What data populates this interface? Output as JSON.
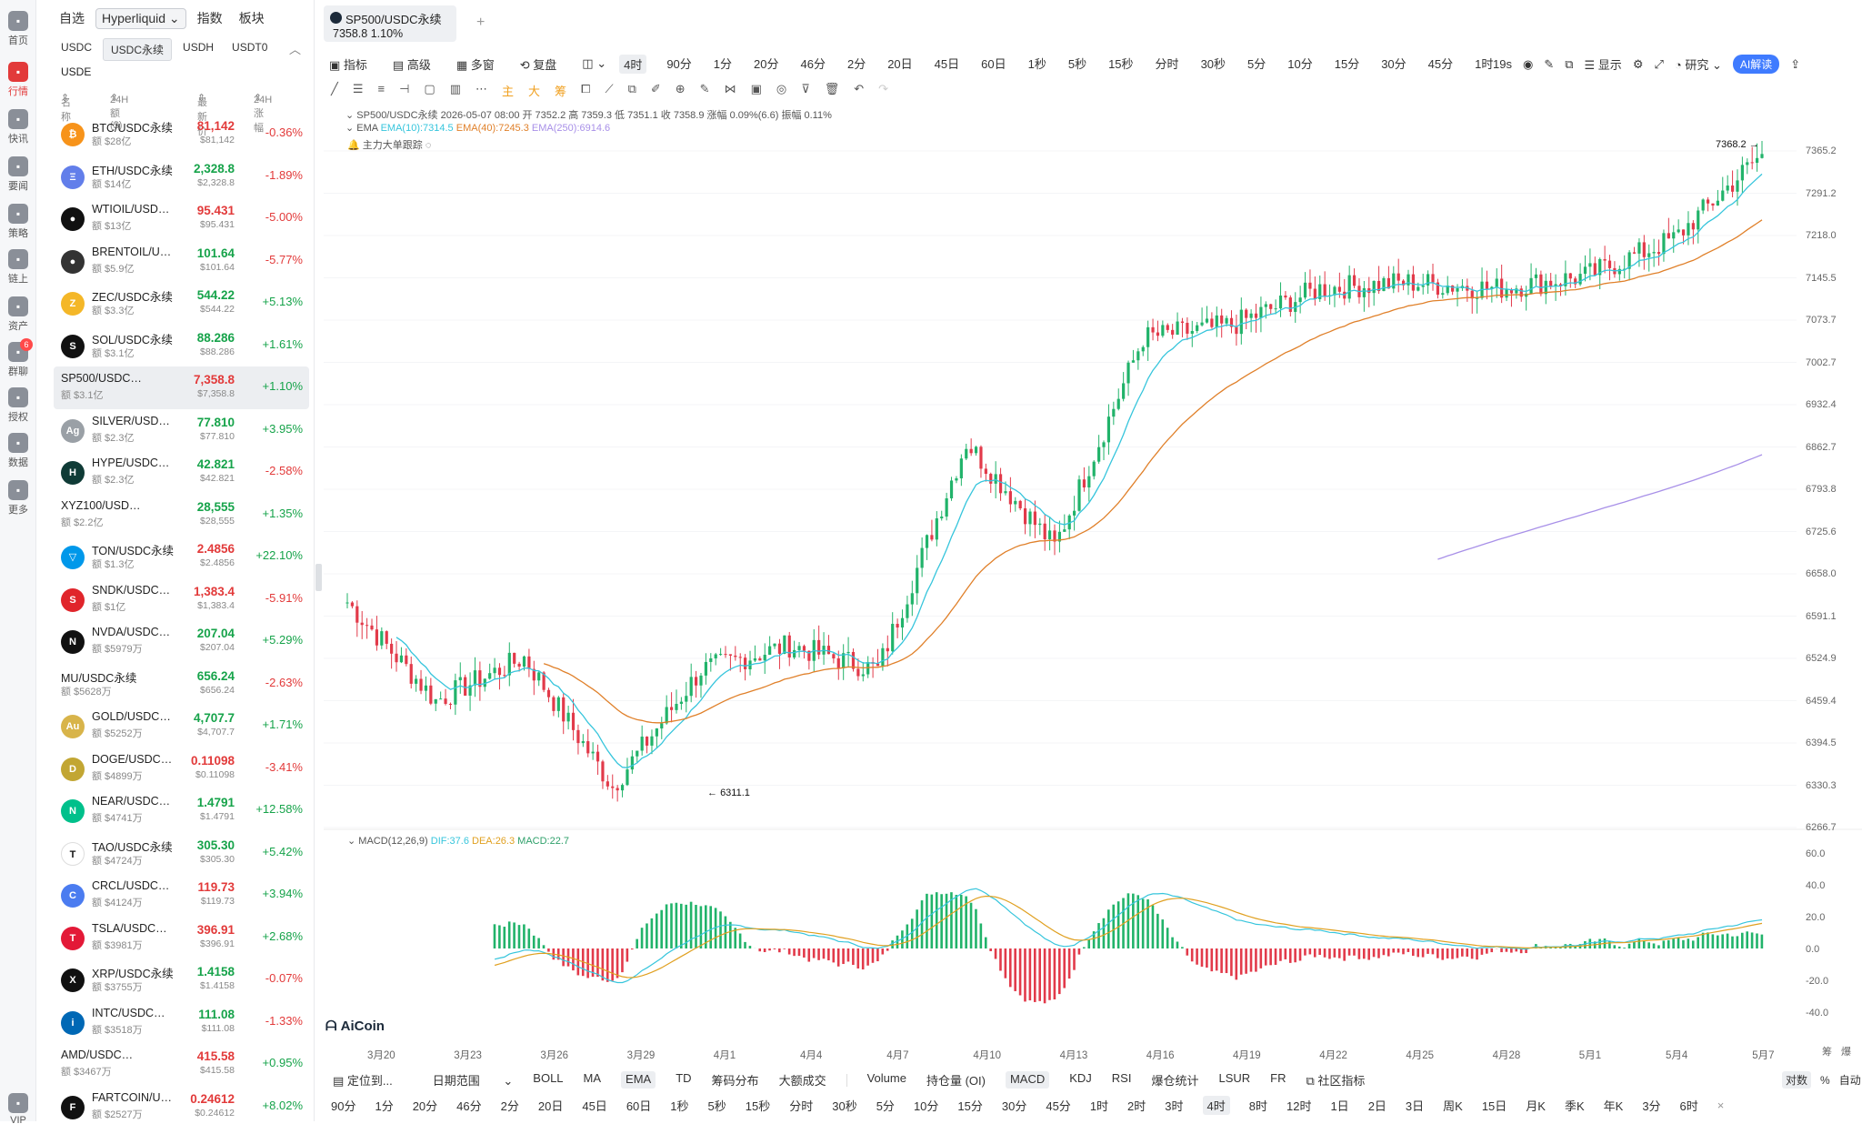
{
  "nav": {
    "items": [
      {
        "label": "首页",
        "icon": "home-icon"
      },
      {
        "label": "行情",
        "icon": "chart-icon",
        "active": true
      },
      {
        "label": "快讯",
        "icon": "flash-icon"
      },
      {
        "label": "要闻",
        "icon": "news-icon"
      },
      {
        "label": "策略",
        "icon": "strategy-icon"
      },
      {
        "label": "链上",
        "icon": "chain-icon"
      },
      {
        "label": "资产",
        "icon": "wallet-icon"
      },
      {
        "label": "群聊",
        "icon": "chat-icon",
        "badge": "6"
      },
      {
        "label": "授权",
        "icon": "auth-icon"
      },
      {
        "label": "数据",
        "icon": "data-icon"
      },
      {
        "label": "更多",
        "icon": "more-icon"
      },
      {
        "label": "VIP",
        "icon": "vip-icon"
      }
    ]
  },
  "market": {
    "tabs": [
      "自选",
      "Hyperliquid",
      "指数",
      "板块"
    ],
    "subtabs": [
      "USDC",
      "USDC永续",
      "USDH",
      "USDT0"
    ],
    "subtab2": "USDE",
    "headers": {
      "name": "名称",
      "volume": "24H额($)",
      "price": "最新价",
      "change": "24H涨幅"
    },
    "rows": [
      {
        "name": "BTC/USDC永续",
        "vol": "额 $28亿",
        "price": "81,142",
        "usd": "$81,142",
        "chg": "-0.36%",
        "dir": "dn",
        "coin": "₿",
        "color": "#f7931a"
      },
      {
        "name": "ETH/USDC永续",
        "vol": "额 $14亿",
        "price": "2,328.8",
        "usd": "$2,328.8",
        "chg": "-1.89%",
        "dir": "up",
        "coin": "Ξ",
        "color": "#627eea"
      },
      {
        "name": "WTIOIL/USD…",
        "vol": "额 $13亿",
        "price": "95.431",
        "usd": "$95.431",
        "chg": "-5.00%",
        "dir": "dn",
        "coin": "●",
        "color": "#111"
      },
      {
        "name": "BRENTOIL/U…",
        "vol": "额 $5.9亿",
        "price": "101.64",
        "usd": "$101.64",
        "chg": "-5.77%",
        "dir": "up",
        "coin": "●",
        "color": "#333"
      },
      {
        "name": "ZEC/USDC永续",
        "vol": "额 $3.3亿",
        "price": "544.22",
        "usd": "$544.22",
        "chg": "+5.13%",
        "dir": "up",
        "coin": "Z",
        "color": "#f4b728"
      },
      {
        "name": "SOL/USDC永续",
        "vol": "额 $3.1亿",
        "price": "88.286",
        "usd": "$88.286",
        "chg": "+1.61%",
        "dir": "up",
        "coin": "S",
        "color": "#111"
      },
      {
        "name": "SP500/USDC…",
        "vol": "额 $3.1亿",
        "price": "7,358.8",
        "usd": "$7,358.8",
        "chg": "+1.10%",
        "dir": "dn",
        "coin": "",
        "color": "transparent",
        "selected": true
      },
      {
        "name": "SILVER/USD…",
        "vol": "额 $2.3亿",
        "price": "77.810",
        "usd": "$77.810",
        "chg": "+3.95%",
        "dir": "up",
        "coin": "Ag",
        "color": "#9aa0a6"
      },
      {
        "name": "HYPE/USDC…",
        "vol": "额 $2.3亿",
        "price": "42.821",
        "usd": "$42.821",
        "chg": "-2.58%",
        "dir": "up",
        "coin": "H",
        "color": "#0f3b36"
      },
      {
        "name": "XYZ100/USD…",
        "vol": "额 $2.2亿",
        "price": "28,555",
        "usd": "$28,555",
        "chg": "+1.35%",
        "dir": "up",
        "coin": "",
        "color": "transparent"
      },
      {
        "name": "TON/USDC永续",
        "vol": "额 $1.3亿",
        "price": "2.4856",
        "usd": "$2.4856",
        "chg": "+22.10%",
        "dir": "dn",
        "coin": "▽",
        "color": "#0098ea"
      },
      {
        "name": "SNDK/USDC…",
        "vol": "额 $1亿",
        "price": "1,383.4",
        "usd": "$1,383.4",
        "chg": "-5.91%",
        "dir": "dn",
        "coin": "S",
        "color": "#e0252b"
      },
      {
        "name": "NVDA/USDC…",
        "vol": "额 $5979万",
        "price": "207.04",
        "usd": "$207.04",
        "chg": "+5.29%",
        "dir": "up",
        "coin": "N",
        "color": "#111"
      },
      {
        "name": "MU/USDC永续",
        "vol": "额 $5628万",
        "price": "656.24",
        "usd": "$656.24",
        "chg": "-2.63%",
        "dir": "up",
        "coin": "",
        "color": "transparent"
      },
      {
        "name": "GOLD/USDC…",
        "vol": "额 $5252万",
        "price": "4,707.7",
        "usd": "$4,707.7",
        "chg": "+1.71%",
        "dir": "up",
        "coin": "Au",
        "color": "#d8b44a"
      },
      {
        "name": "DOGE/USDC…",
        "vol": "额 $4899万",
        "price": "0.11098",
        "usd": "$0.11098",
        "chg": "-3.41%",
        "dir": "dn",
        "coin": "D",
        "color": "#c2a633"
      },
      {
        "name": "NEAR/USDC…",
        "vol": "额 $4741万",
        "price": "1.4791",
        "usd": "$1.4791",
        "chg": "+12.58%",
        "dir": "up",
        "coin": "N",
        "color": "#00c08b"
      },
      {
        "name": "TAO/USDC永续",
        "vol": "额 $4724万",
        "price": "305.30",
        "usd": "$305.30",
        "chg": "+5.42%",
        "dir": "up",
        "coin": "T",
        "color": "#fff"
      },
      {
        "name": "CRCL/USDC…",
        "vol": "额 $4124万",
        "price": "119.73",
        "usd": "$119.73",
        "chg": "+3.94%",
        "dir": "dn",
        "coin": "C",
        "color": "#4b7cf0"
      },
      {
        "name": "TSLA/USDC…",
        "vol": "额 $3981万",
        "price": "396.91",
        "usd": "$396.91",
        "chg": "+2.68%",
        "dir": "dn",
        "coin": "T",
        "color": "#e31937"
      },
      {
        "name": "XRP/USDC永续",
        "vol": "额 $3755万",
        "price": "1.4158",
        "usd": "$1.4158",
        "chg": "-0.07%",
        "dir": "up",
        "coin": "X",
        "color": "#111"
      },
      {
        "name": "INTC/USDC…",
        "vol": "额 $3518万",
        "price": "111.08",
        "usd": "$111.08",
        "chg": "-1.33%",
        "dir": "up",
        "coin": "i",
        "color": "#0068b5"
      },
      {
        "name": "AMD/USDC…",
        "vol": "额 $3467万",
        "price": "415.58",
        "usd": "$415.58",
        "chg": "+0.95%",
        "dir": "dn",
        "coin": "",
        "color": "transparent"
      },
      {
        "name": "FARTCOIN/U…",
        "vol": "额 $2527万",
        "price": "0.24612",
        "usd": "$0.24612",
        "chg": "+8.02%",
        "dir": "dn",
        "coin": "F",
        "color": "#111"
      }
    ]
  },
  "symbol": {
    "name": "SP500/USDC永续",
    "price": "7358.8",
    "change": "1.10%"
  },
  "toolbar": {
    "left": [
      "指标",
      "高级",
      "多窗",
      "复盘"
    ],
    "intervals": [
      "4时",
      "90分",
      "1分",
      "20分",
      "46分",
      "2分",
      "20日",
      "45日",
      "60日",
      "1秒",
      "5秒",
      "15秒",
      "分时",
      "30秒",
      "5分",
      "10分",
      "15分",
      "30分",
      "45分",
      "1时"
    ],
    "selected_interval": "4时",
    "right": {
      "countdown": "19s",
      "display": "显示",
      "research": "研究",
      "ai": "AI解读"
    }
  },
  "drawtools": {
    "marks": [
      "主",
      "大",
      "筹"
    ]
  },
  "legend": {
    "ohlc": "SP500/USDC永续 2026-05-07 08:00 开 7352.2 高 7359.3 低 7351.1 收 7358.9 涨幅 0.09%(6.6) 振幅 0.11%",
    "ema_label": "EMA",
    "ema10": "EMA(10):7314.5",
    "ema40": "EMA(40):7245.3",
    "ema250": "EMA(250):6914.6",
    "ema10_color": "#36c5dc",
    "ema40_color": "#e0802a",
    "ema250_color": "#a890e8",
    "track": "主力大单跟踪",
    "macd": "MACD(12,26,9)",
    "dif": "DIF:37.6",
    "dea": "DEA:26.3",
    "macdv": "MACD:22.7"
  },
  "price_axis": [
    "7365.2",
    "7291.2",
    "7218.0",
    "7145.5",
    "7073.7",
    "7002.7",
    "6932.4",
    "6862.7",
    "6793.8",
    "6725.6",
    "6658.0",
    "6591.1",
    "6524.9",
    "6459.4",
    "6394.5",
    "6330.3",
    "6266.7"
  ],
  "macd_axis": [
    "60.0",
    "40.0",
    "20.0",
    "0.0",
    "-20.0",
    "-40.0"
  ],
  "x_axis": [
    "3月20",
    "3月23",
    "3月26",
    "3月29",
    "4月1",
    "4月4",
    "4月7",
    "4月10",
    "4月13",
    "4月16",
    "4月19",
    "4月22",
    "4月25",
    "4月28",
    "5月1",
    "5月4",
    "5月7"
  ],
  "high_label": "7368.2",
  "low_label": "6311.1",
  "logo": "AiCoin",
  "scale": {
    "a": "筹",
    "b": "爆",
    "log": "对数",
    "pct": "%",
    "auto": "自动"
  },
  "bottom1": {
    "goto": "定位到...",
    "range": "日期范围",
    "items": [
      "BOLL",
      "MA",
      "EMA",
      "TD",
      "筹码分布",
      "大额成交"
    ],
    "selected": "EMA",
    "items2": [
      "Volume",
      "持仓量 (OI)",
      "MACD",
      "KDJ",
      "RSI",
      "爆仓统计",
      "LSUR",
      "FR"
    ],
    "selected2": "MACD",
    "community": "社区指标"
  },
  "bottom2": {
    "items": [
      "90分",
      "1分",
      "20分",
      "46分",
      "2分",
      "20日",
      "45日",
      "60日",
      "1秒",
      "5秒",
      "15秒",
      "分时",
      "30秒",
      "5分",
      "10分",
      "15分",
      "30分",
      "45分",
      "1时",
      "2时",
      "3时",
      "4时",
      "8时",
      "12时",
      "1日",
      "2日",
      "3日",
      "周K",
      "15日",
      "月K",
      "季K",
      "年K",
      "3分",
      "6时"
    ],
    "selected": "4时"
  },
  "chart_data": {
    "type": "candlestick",
    "title": "SP500/USDC永续 4时",
    "ylim": [
      6266.7,
      7365.2
    ],
    "key_points": [
      [
        "3月20",
        6630
      ],
      [
        "3月23",
        6470
      ],
      [
        "3月26",
        6540
      ],
      [
        "3月29",
        6330
      ],
      [
        "4月1",
        6520
      ],
      [
        "4月4",
        6560
      ],
      [
        "4月7",
        6520
      ],
      [
        "4月10",
        6890
      ],
      [
        "4月13",
        6720
      ],
      [
        "4月16",
        7060
      ],
      [
        "4月19",
        7080
      ],
      [
        "4月22",
        7140
      ],
      [
        "4月25",
        7150
      ],
      [
        "4月28",
        7140
      ],
      [
        "5月1",
        7160
      ],
      [
        "5月4",
        7220
      ],
      [
        "5月7",
        7358.8
      ]
    ],
    "high": 7368.2,
    "low": 6311.1,
    "indicators": [
      "EMA(10)",
      "EMA(40)",
      "EMA(250)",
      "MACD(12,26,9)"
    ]
  }
}
